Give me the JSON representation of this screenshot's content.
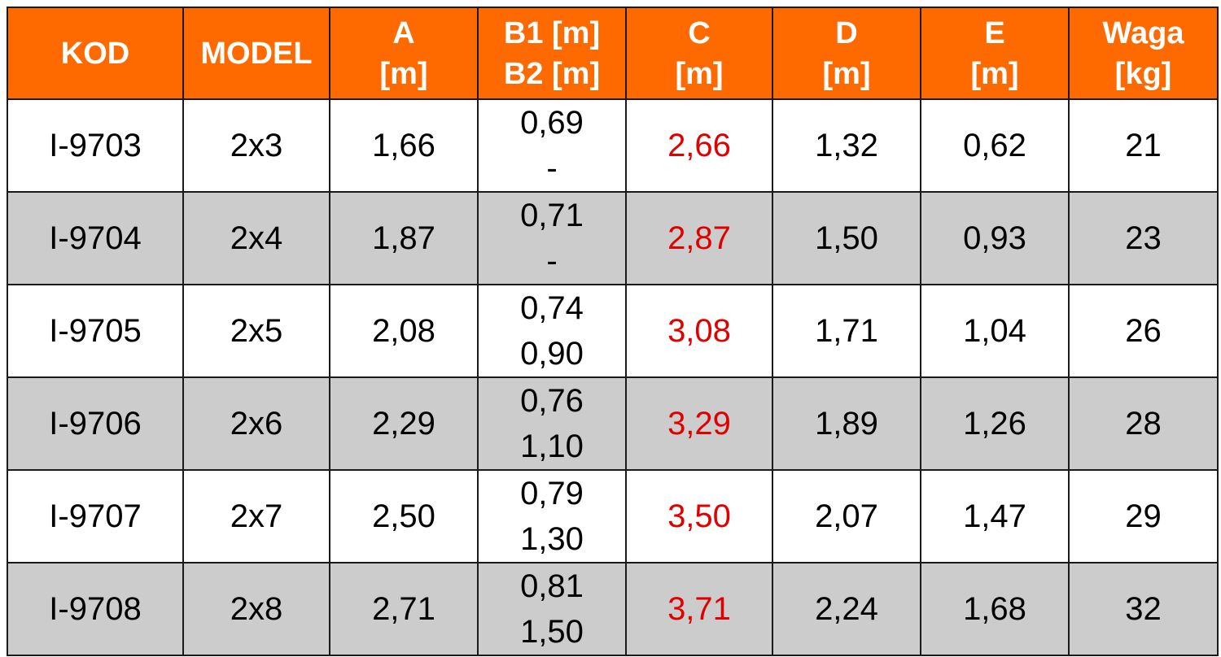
{
  "colors": {
    "header_bg": "#ff6a00",
    "header_text": "#ffffff",
    "row_alt_bg": "#cccccc",
    "c_value_text": "#e00000"
  },
  "header": {
    "kod": "KOD",
    "model": "MODEL",
    "a": [
      "A",
      "[m]"
    ],
    "b": [
      "B1 [m]",
      "B2 [m]"
    ],
    "c": [
      "C",
      "[m]"
    ],
    "d": [
      "D",
      "[m]"
    ],
    "e": [
      "E",
      "[m]"
    ],
    "waga": [
      "Waga",
      "[kg]"
    ]
  },
  "rows": [
    {
      "kod": "I-9703",
      "model": "2x3",
      "a": "1,66",
      "b1": "0,69",
      "b2": "-",
      "c": "2,66",
      "d": "1,32",
      "e": "0,62",
      "waga": "21"
    },
    {
      "kod": "I-9704",
      "model": "2x4",
      "a": "1,87",
      "b1": "0,71",
      "b2": "-",
      "c": "2,87",
      "d": "1,50",
      "e": "0,93",
      "waga": "23"
    },
    {
      "kod": "I-9705",
      "model": "2x5",
      "a": "2,08",
      "b1": "0,74",
      "b2": "0,90",
      "c": "3,08",
      "d": "1,71",
      "e": "1,04",
      "waga": "26"
    },
    {
      "kod": "I-9706",
      "model": "2x6",
      "a": "2,29",
      "b1": "0,76",
      "b2": "1,10",
      "c": "3,29",
      "d": "1,89",
      "e": "1,26",
      "waga": "28"
    },
    {
      "kod": "I-9707",
      "model": "2x7",
      "a": "2,50",
      "b1": "0,79",
      "b2": "1,30",
      "c": "3,50",
      "d": "2,07",
      "e": "1,47",
      "waga": "29"
    },
    {
      "kod": "I-9708",
      "model": "2x8",
      "a": "2,71",
      "b1": "0,81",
      "b2": "1,50",
      "c": "3,71",
      "d": "2,24",
      "e": "1,68",
      "waga": "32"
    }
  ]
}
